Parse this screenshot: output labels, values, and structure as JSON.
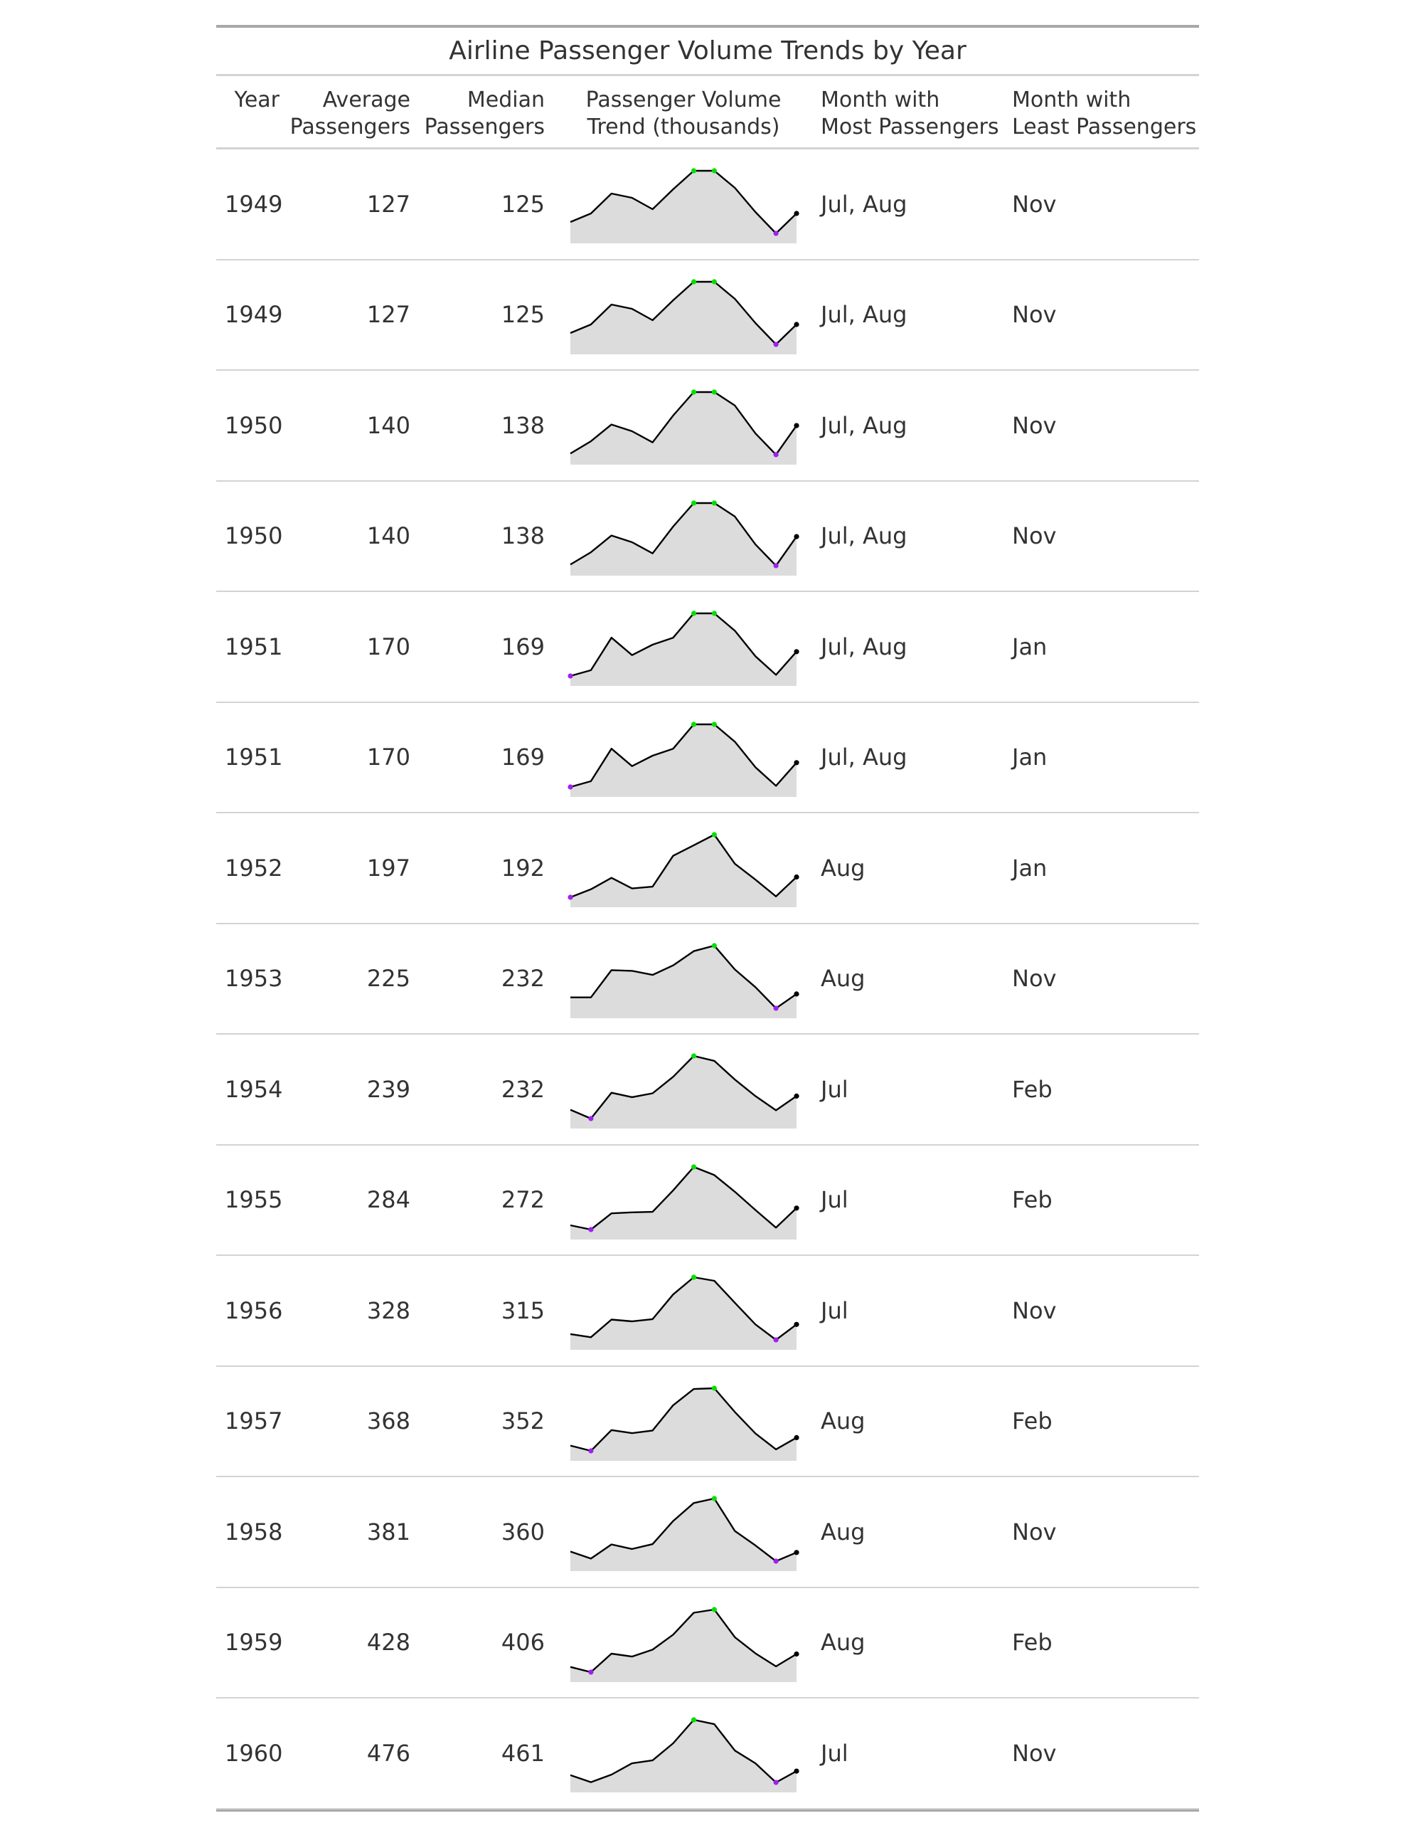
{
  "chart_data": {
    "type": "table",
    "title": "Airline Passenger Volume Trends by Year",
    "columns": [
      [
        "Year"
      ],
      [
        "Average",
        "Passengers"
      ],
      [
        "Median",
        "Passengers"
      ],
      [
        "Passenger Volume",
        "Trend (thousands)"
      ],
      [
        "Month with",
        "Most Passengers"
      ],
      [
        "Month with",
        "Least Passengers"
      ]
    ],
    "colors": {
      "line": "#000000",
      "area": "#dcdcdc",
      "max_point": "#00e000",
      "min_point": "#a020f0",
      "last_point": "#000000"
    },
    "rows": [
      {
        "year": "1949",
        "avg": "127",
        "median": "125",
        "trend": [
          112,
          118,
          132,
          129,
          121,
          135,
          148,
          148,
          136,
          119,
          104,
          118
        ],
        "max_month": "Jul, Aug",
        "min_month": "Nov"
      },
      {
        "year": "1949",
        "avg": "127",
        "median": "125",
        "trend": [
          112,
          118,
          132,
          129,
          121,
          135,
          148,
          148,
          136,
          119,
          104,
          118
        ],
        "max_month": "Jul, Aug",
        "min_month": "Nov"
      },
      {
        "year": "1950",
        "avg": "140",
        "median": "138",
        "trend": [
          115,
          126,
          141,
          135,
          125,
          149,
          170,
          170,
          158,
          133,
          114,
          140
        ],
        "max_month": "Jul, Aug",
        "min_month": "Nov"
      },
      {
        "year": "1950",
        "avg": "140",
        "median": "138",
        "trend": [
          115,
          126,
          141,
          135,
          125,
          149,
          170,
          170,
          158,
          133,
          114,
          140
        ],
        "max_month": "Jul, Aug",
        "min_month": "Nov"
      },
      {
        "year": "1951",
        "avg": "170",
        "median": "169",
        "trend": [
          145,
          150,
          178,
          163,
          172,
          178,
          199,
          199,
          184,
          162,
          146,
          166
        ],
        "max_month": "Jul, Aug",
        "min_month": "Jan"
      },
      {
        "year": "1951",
        "avg": "170",
        "median": "169",
        "trend": [
          145,
          150,
          178,
          163,
          172,
          178,
          199,
          199,
          184,
          162,
          146,
          166
        ],
        "max_month": "Jul, Aug",
        "min_month": "Jan"
      },
      {
        "year": "1952",
        "avg": "197",
        "median": "192",
        "trend": [
          171,
          180,
          193,
          181,
          183,
          218,
          230,
          242,
          209,
          191,
          172,
          194
        ],
        "max_month": "Aug",
        "min_month": "Jan"
      },
      {
        "year": "1953",
        "avg": "225",
        "median": "232",
        "trend": [
          196,
          196,
          236,
          235,
          229,
          243,
          264,
          272,
          237,
          211,
          180,
          201
        ],
        "max_month": "Aug",
        "min_month": "Nov"
      },
      {
        "year": "1954",
        "avg": "239",
        "median": "232",
        "trend": [
          204,
          188,
          235,
          227,
          234,
          264,
          302,
          293,
          259,
          229,
          203,
          229
        ],
        "max_month": "Jul",
        "min_month": "Feb"
      },
      {
        "year": "1955",
        "avg": "284",
        "median": "272",
        "trend": [
          242,
          233,
          267,
          269,
          270,
          315,
          364,
          347,
          312,
          274,
          237,
          278
        ],
        "max_month": "Jul",
        "min_month": "Feb"
      },
      {
        "year": "1956",
        "avg": "328",
        "median": "315",
        "trend": [
          284,
          277,
          317,
          313,
          318,
          374,
          413,
          405,
          355,
          306,
          271,
          306
        ],
        "max_month": "Jul",
        "min_month": "Nov"
      },
      {
        "year": "1957",
        "avg": "368",
        "median": "352",
        "trend": [
          315,
          301,
          356,
          348,
          355,
          422,
          465,
          467,
          404,
          347,
          305,
          336
        ],
        "max_month": "Aug",
        "min_month": "Feb"
      },
      {
        "year": "1958",
        "avg": "381",
        "median": "360",
        "trend": [
          340,
          318,
          362,
          348,
          363,
          435,
          491,
          505,
          404,
          359,
          310,
          337
        ],
        "max_month": "Aug",
        "min_month": "Nov"
      },
      {
        "year": "1959",
        "avg": "428",
        "median": "406",
        "trend": [
          360,
          342,
          406,
          396,
          420,
          472,
          548,
          559,
          463,
          407,
          362,
          405
        ],
        "max_month": "Aug",
        "min_month": "Feb"
      },
      {
        "year": "1960",
        "avg": "476",
        "median": "461",
        "trend": [
          417,
          391,
          419,
          461,
          472,
          535,
          622,
          606,
          508,
          461,
          390,
          432
        ],
        "max_month": "Jul",
        "min_month": "Nov"
      }
    ]
  }
}
